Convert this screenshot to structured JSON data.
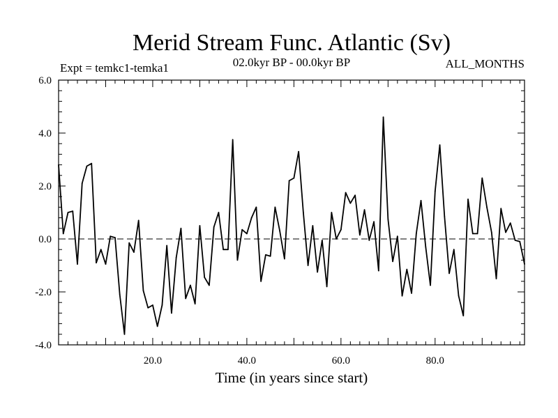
{
  "chart_data": {
    "type": "line",
    "title": "Merid Stream Func. Atlantic (Sv)",
    "experiment": "Expt = temkc1-temka1",
    "period": "02.0kyr BP - 00.0kyr BP",
    "season": "ALL_MONTHS",
    "xlabel": "Time (in years since start)",
    "ylabel": "",
    "xlim": [
      0,
      99
    ],
    "ylim": [
      -4.0,
      6.0
    ],
    "xticks": [
      20.0,
      40.0,
      60.0,
      80.0
    ],
    "xtick_labels": [
      "20.0",
      "40.0",
      "60.0",
      "80.0"
    ],
    "yticks": [
      -4.0,
      -2.0,
      0.0,
      2.0,
      4.0,
      6.0
    ],
    "ytick_labels": [
      "-4.0",
      "-2.0",
      "0.0",
      "2.0",
      "4.0",
      "6.0"
    ],
    "reference_line": 0.0,
    "series": [
      {
        "name": "temkc1-temka1",
        "x": [
          0,
          1,
          2,
          3,
          4,
          5,
          6,
          7,
          8,
          9,
          10,
          11,
          12,
          13,
          14,
          15,
          16,
          17,
          18,
          19,
          20,
          21,
          22,
          23,
          24,
          25,
          26,
          27,
          28,
          29,
          30,
          31,
          32,
          33,
          34,
          35,
          36,
          37,
          38,
          39,
          40,
          41,
          42,
          43,
          44,
          45,
          46,
          47,
          48,
          49,
          50,
          51,
          52,
          53,
          54,
          55,
          56,
          57,
          58,
          59,
          60,
          61,
          62,
          63,
          64,
          65,
          66,
          67,
          68,
          69,
          70,
          71,
          72,
          73,
          74,
          75,
          76,
          77,
          78,
          79,
          80,
          81,
          82,
          83,
          84,
          85,
          86,
          87,
          88,
          89,
          90,
          91,
          92,
          93,
          94,
          95,
          96,
          97,
          98,
          99
        ],
        "values": [
          2.8,
          0.2,
          1.0,
          1.05,
          -0.95,
          2.1,
          2.75,
          2.85,
          -0.9,
          -0.4,
          -0.95,
          0.1,
          0.05,
          -2.1,
          -3.6,
          -0.15,
          -0.5,
          0.7,
          -1.95,
          -2.6,
          -2.5,
          -3.3,
          -2.5,
          -0.25,
          -2.8,
          -0.7,
          0.4,
          -2.25,
          -1.75,
          -2.45,
          0.5,
          -1.45,
          -1.75,
          0.45,
          1.0,
          -0.4,
          -0.4,
          3.75,
          -0.8,
          0.35,
          0.2,
          0.8,
          1.2,
          -1.6,
          -0.6,
          -0.65,
          1.2,
          0.3,
          -0.75,
          2.2,
          2.3,
          3.3,
          1.0,
          -1.0,
          0.5,
          -1.25,
          -0.05,
          -1.8,
          1.0,
          0.0,
          0.35,
          1.75,
          1.35,
          1.65,
          0.15,
          1.1,
          -0.05,
          0.65,
          -1.2,
          4.6,
          0.75,
          -0.85,
          0.1,
          -2.15,
          -1.15,
          -2.05,
          0.2,
          1.45,
          -0.3,
          -1.75,
          1.8,
          3.55,
          0.85,
          -1.3,
          -0.4,
          -2.15,
          -2.9,
          1.5,
          0.2,
          0.2,
          2.3,
          1.2,
          0.25,
          -1.5,
          1.15,
          0.25,
          0.6,
          -0.05,
          -0.1,
          -0.95
        ]
      }
    ]
  }
}
